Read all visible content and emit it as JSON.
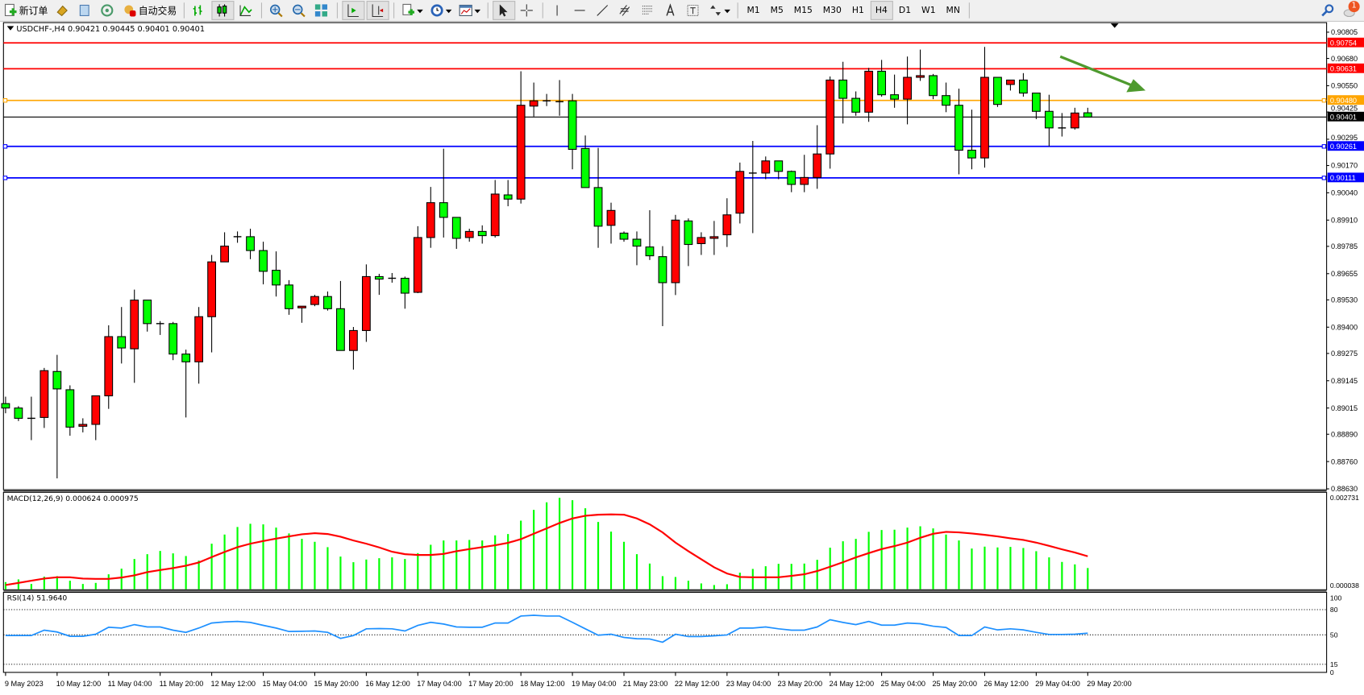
{
  "toolbar": {
    "new_order_label": "新订单",
    "auto_trading_label": "自动交易",
    "timeframes": [
      "M1",
      "M5",
      "M15",
      "M30",
      "H1",
      "H4",
      "D1",
      "W1",
      "MN"
    ],
    "active_timeframe": "H4",
    "notification_count": "1"
  },
  "chart": {
    "header": "USDCHF-,H4  0.90421 0.90445 0.90401 0.90401",
    "symbol": "USDCHF-",
    "timeframe": "H4",
    "colors": {
      "bull": "#ff0000",
      "bear": "#00ff00",
      "macd_hist": "#00ff00",
      "signal": "#ff0000",
      "rsi": "#1e90ff"
    }
  },
  "chart_data": [
    {
      "type": "candlestick",
      "title": "USDCHF-,H4",
      "ylim": [
        0.8863,
        0.90805
      ],
      "y_ticks": [
        "0.90805",
        "0.90680",
        "0.90550",
        "0.90425",
        "0.90295",
        "0.90170",
        "0.90040",
        "0.89910",
        "0.89785",
        "0.89655",
        "0.89530",
        "0.89400",
        "0.89275",
        "0.89145",
        "0.89015",
        "0.88890",
        "0.88760",
        "0.88630"
      ],
      "x_tick_labels": [
        "9 May 2023",
        "10 May 12:00",
        "11 May 04:00",
        "11 May 20:00",
        "12 May 12:00",
        "15 May 04:00",
        "15 May 20:00",
        "16 May 12:00",
        "17 May 04:00",
        "17 May 20:00",
        "18 May 12:00",
        "19 May 04:00",
        "21 May 23:00",
        "22 May 12:00",
        "23 May 04:00",
        "23 May 20:00",
        "24 May 12:00",
        "25 May 04:00",
        "25 May 20:00",
        "26 May 12:00",
        "29 May 04:00",
        "29 May 20:00"
      ],
      "ohlc": [
        [
          0.89036,
          0.89069,
          0.8899,
          0.89015
        ],
        [
          0.89015,
          0.89024,
          0.88953,
          0.88966
        ],
        [
          0.88966,
          0.89069,
          0.88862,
          0.88966
        ],
        [
          0.8897,
          0.89206,
          0.8892,
          0.89193
        ],
        [
          0.89189,
          0.89268,
          0.8868,
          0.89106
        ],
        [
          0.89102,
          0.89123,
          0.88883,
          0.88924
        ],
        [
          0.88928,
          0.88966,
          0.88899,
          0.88937
        ],
        [
          0.88937,
          0.89073,
          0.88862,
          0.89073
        ],
        [
          0.89073,
          0.89409,
          0.89011,
          0.89355
        ],
        [
          0.89355,
          0.89496,
          0.89227,
          0.89301
        ],
        [
          0.89297,
          0.89579,
          0.89135,
          0.89529
        ],
        [
          0.89529,
          0.89529,
          0.89379,
          0.89417
        ],
        [
          0.89417,
          0.89429,
          0.89363,
          0.89417
        ],
        [
          0.89417,
          0.89425,
          0.89243,
          0.89272
        ],
        [
          0.89272,
          0.89293,
          0.8897,
          0.89235
        ],
        [
          0.89235,
          0.89496,
          0.89131,
          0.8945
        ],
        [
          0.8945,
          0.89744,
          0.8928,
          0.89711
        ],
        [
          0.89711,
          0.89852,
          0.89711,
          0.89786
        ],
        [
          0.89831,
          0.89856,
          0.89802,
          0.89831
        ],
        [
          0.89831,
          0.89869,
          0.89724,
          0.89765
        ],
        [
          0.89765,
          0.89807,
          0.89604,
          0.89666
        ],
        [
          0.89671,
          0.89761,
          0.89546,
          0.89601
        ],
        [
          0.89601,
          0.89624,
          0.89459,
          0.89488
        ],
        [
          0.89492,
          0.895,
          0.89421,
          0.895
        ],
        [
          0.89508,
          0.89554,
          0.895,
          0.89546
        ],
        [
          0.89546,
          0.8957,
          0.89479,
          0.89488
        ],
        [
          0.89488,
          0.8962,
          0.89289,
          0.89289
        ],
        [
          0.89289,
          0.89401,
          0.89198,
          0.89384
        ],
        [
          0.89384,
          0.89699,
          0.8933,
          0.89641
        ],
        [
          0.89641,
          0.89654,
          0.89554,
          0.89629
        ],
        [
          0.89633,
          0.89658,
          0.89612,
          0.89633
        ],
        [
          0.89633,
          0.89641,
          0.89488,
          0.89562
        ],
        [
          0.89566,
          0.89881,
          0.89562,
          0.89827
        ],
        [
          0.89827,
          0.90068,
          0.89778,
          0.89993
        ],
        [
          0.89993,
          0.9025,
          0.89827,
          0.89923
        ],
        [
          0.89923,
          0.89923,
          0.89773,
          0.89823
        ],
        [
          0.89827,
          0.89869,
          0.89807,
          0.89856
        ],
        [
          0.89856,
          0.89885,
          0.89798,
          0.89836
        ],
        [
          0.89836,
          0.90101,
          0.89827,
          0.90034
        ],
        [
          0.9003,
          0.90101,
          0.89976,
          0.9001
        ],
        [
          0.9001,
          0.90619,
          0.89989,
          0.90457
        ],
        [
          0.90453,
          0.90565,
          0.90403,
          0.90478
        ],
        [
          0.90478,
          0.90511,
          0.90453,
          0.90478
        ],
        [
          0.90474,
          0.90577,
          0.90407,
          0.90474
        ],
        [
          0.90478,
          0.90511,
          0.90152,
          0.90247
        ],
        [
          0.90251,
          0.90313,
          0.90065,
          0.90065
        ],
        [
          0.90065,
          0.90254,
          0.89778,
          0.89881
        ],
        [
          0.89885,
          0.89993,
          0.89798,
          0.89956
        ],
        [
          0.89848,
          0.89856,
          0.89807,
          0.89819
        ],
        [
          0.89819,
          0.89856,
          0.89695,
          0.89786
        ],
        [
          0.89782,
          0.89957,
          0.8972,
          0.8974
        ],
        [
          0.89736,
          0.89786,
          0.89405,
          0.89612
        ],
        [
          0.89612,
          0.89935,
          0.89553,
          0.8991
        ],
        [
          0.89906,
          0.89918,
          0.89691,
          0.89794
        ],
        [
          0.89798,
          0.89852,
          0.89744,
          0.89827
        ],
        [
          0.89823,
          0.89906,
          0.89744,
          0.89831
        ],
        [
          0.8984,
          0.90014,
          0.89782,
          0.89935
        ],
        [
          0.89943,
          0.90184,
          0.89894,
          0.90142
        ],
        [
          0.90134,
          0.90287,
          0.89848,
          0.90134
        ],
        [
          0.90134,
          0.90213,
          0.90105,
          0.90192
        ],
        [
          0.90192,
          0.90192,
          0.90105,
          0.90142
        ],
        [
          0.90142,
          0.90146,
          0.90043,
          0.9008
        ],
        [
          0.9008,
          0.90221,
          0.90043,
          0.90113
        ],
        [
          0.90113,
          0.90362,
          0.90059,
          0.90225
        ],
        [
          0.90225,
          0.90594,
          0.90155,
          0.90577
        ],
        [
          0.90577,
          0.90664,
          0.9037,
          0.9049
        ],
        [
          0.9049,
          0.90523,
          0.90407,
          0.90424
        ],
        [
          0.90424,
          0.90635,
          0.90378,
          0.90619
        ],
        [
          0.90619,
          0.90673,
          0.90498,
          0.90507
        ],
        [
          0.90507,
          0.90603,
          0.90445,
          0.90486
        ],
        [
          0.90486,
          0.90689,
          0.90366,
          0.9059
        ],
        [
          0.9059,
          0.90722,
          0.90573,
          0.90598
        ],
        [
          0.90598,
          0.90606,
          0.90486,
          0.90503
        ],
        [
          0.90503,
          0.90565,
          0.90424,
          0.90457
        ],
        [
          0.90457,
          0.90536,
          0.90128,
          0.90243
        ],
        [
          0.90243,
          0.90436,
          0.90152,
          0.90206
        ],
        [
          0.90206,
          0.90735,
          0.9016,
          0.9059
        ],
        [
          0.9059,
          0.9059,
          0.90449,
          0.90461
        ],
        [
          0.90556,
          0.90577,
          0.90527,
          0.90577
        ],
        [
          0.90577,
          0.9061,
          0.90498,
          0.90515
        ],
        [
          0.90515,
          0.90515,
          0.90391,
          0.90428
        ],
        [
          0.90428,
          0.90507,
          0.90262,
          0.90349
        ],
        [
          0.90349,
          0.9042,
          0.90308,
          0.90349
        ],
        [
          0.90349,
          0.90445,
          0.90341,
          0.9042
        ],
        [
          0.90421,
          0.90445,
          0.90401,
          0.90401
        ]
      ],
      "horizontal_lines": [
        {
          "price": "0.90754",
          "color": "#ff0000"
        },
        {
          "price": "0.90631",
          "color": "#ff0000"
        },
        {
          "price": "0.90480",
          "color": "#ffa500"
        },
        {
          "price": "0.90401",
          "color": "#000000"
        },
        {
          "price": "0.90261",
          "color": "#0000ff"
        },
        {
          "price": "0.90111",
          "color": "#0000ff"
        }
      ],
      "annotation": {
        "type": "arrow",
        "color": "#4e9a2e",
        "direction": "down-right"
      }
    },
    {
      "type": "bar+line",
      "title": "MACD(12,26,9) 0.000624 0.000975",
      "y_tick_labels": [
        "0.002731",
        "0.000038"
      ],
      "histogram": [
        0.000201,
        0.000282,
        0.000145,
        0.000363,
        0.000379,
        0.000242,
        0.000145,
        0.000177,
        0.000435,
        0.000604,
        0.000894,
        0.001039,
        0.001136,
        0.001063,
        0.000983,
        0.000846,
        0.001353,
        0.001627,
        0.001853,
        0.00195,
        0.001933,
        0.001837,
        0.00166,
        0.001498,
        0.00141,
        0.001249,
        0.000967,
        0.000798,
        0.000878,
        0.000918,
        0.000943,
        0.000894,
        0.001071,
        0.001321,
        0.00145,
        0.00145,
        0.001466,
        0.00145,
        0.001603,
        0.001643,
        0.002046,
        0.002368,
        0.002594,
        0.002731,
        0.002658,
        0.002417,
        0.002006,
        0.001716,
        0.00141,
        0.001039,
        0.000757,
        0.000379,
        0.000354,
        0.000242,
        0.000161,
        0.000113,
        0.000137,
        0.000483,
        0.000596,
        0.000677,
        0.000749,
        0.000749,
        0.000757,
        0.00087,
        0.001233,
        0.001426,
        0.001498,
        0.001708,
        0.001764,
        0.001772,
        0.001837,
        0.001877,
        0.001813,
        0.001627,
        0.00145,
        0.001208,
        0.001265,
        0.001241,
        0.001257,
        0.001224,
        0.001128,
        0.000943,
        0.000806,
        0.000733,
        0.000624
      ],
      "signal": [
        0.000113,
        0.000177,
        0.000242,
        0.000306,
        0.000346,
        0.000346,
        0.000306,
        0.000298,
        0.000298,
        0.000338,
        0.000403,
        0.000499,
        0.000564,
        0.00062,
        0.000693,
        0.000789,
        0.000951,
        0.001104,
        0.001249,
        0.001353,
        0.001434,
        0.001506,
        0.001571,
        0.001635,
        0.001668,
        0.001643,
        0.001563,
        0.00145,
        0.001353,
        0.001241,
        0.001112,
        0.001039,
        0.001015,
        0.001015,
        0.001047,
        0.001128,
        0.001192,
        0.001249,
        0.001305,
        0.001378,
        0.00149,
        0.001651,
        0.001813,
        0.001974,
        0.002111,
        0.002191,
        0.002223,
        0.002232,
        0.002223,
        0.002111,
        0.001933,
        0.001692,
        0.001386,
        0.001128,
        0.000886,
        0.000644,
        0.000459,
        0.000354,
        0.000346,
        0.000346,
        0.000346,
        0.000387,
        0.000435,
        0.000532,
        0.000661,
        0.000798,
        0.000943,
        0.001071,
        0.001192,
        0.001281,
        0.001386,
        0.001531,
        0.001651,
        0.001708,
        0.001692,
        0.00166,
        0.001619,
        0.001571,
        0.001515,
        0.001466,
        0.001386,
        0.001289,
        0.001184,
        0.001088,
        0.000975
      ]
    },
    {
      "type": "line",
      "title": "RSI(14) 51.9640",
      "y_tick_labels": [
        "100",
        "80",
        "50",
        "15",
        "0"
      ],
      "levels": [
        80,
        50,
        15
      ],
      "values": [
        49.2,
        49.2,
        49.2,
        55.6,
        53.4,
        48.3,
        48.3,
        50.8,
        59.1,
        58.1,
        62.2,
        59.4,
        59.4,
        55.6,
        53.0,
        58.1,
        64.1,
        65.4,
        66.0,
        64.8,
        61.3,
        58.1,
        54.0,
        54.3,
        54.6,
        53.0,
        45.8,
        49.2,
        57.2,
        57.5,
        57.2,
        54.6,
        61.3,
        64.9,
        62.9,
        59.4,
        59.1,
        59.1,
        64.1,
        64.1,
        72.4,
        73.3,
        72.4,
        72.4,
        64.9,
        57.2,
        49.6,
        50.8,
        47.0,
        45.4,
        45.1,
        41.3,
        50.8,
        48.0,
        48.0,
        48.9,
        49.9,
        58.1,
        58.1,
        59.4,
        57.2,
        55.6,
        55.6,
        59.4,
        68.0,
        64.8,
        62.2,
        66.0,
        61.6,
        61.6,
        64.1,
        63.2,
        60.3,
        58.8,
        49.2,
        49.2,
        59.4,
        55.9,
        57.2,
        55.9,
        53.0,
        50.5,
        50.5,
        50.8,
        51.964
      ]
    }
  ]
}
